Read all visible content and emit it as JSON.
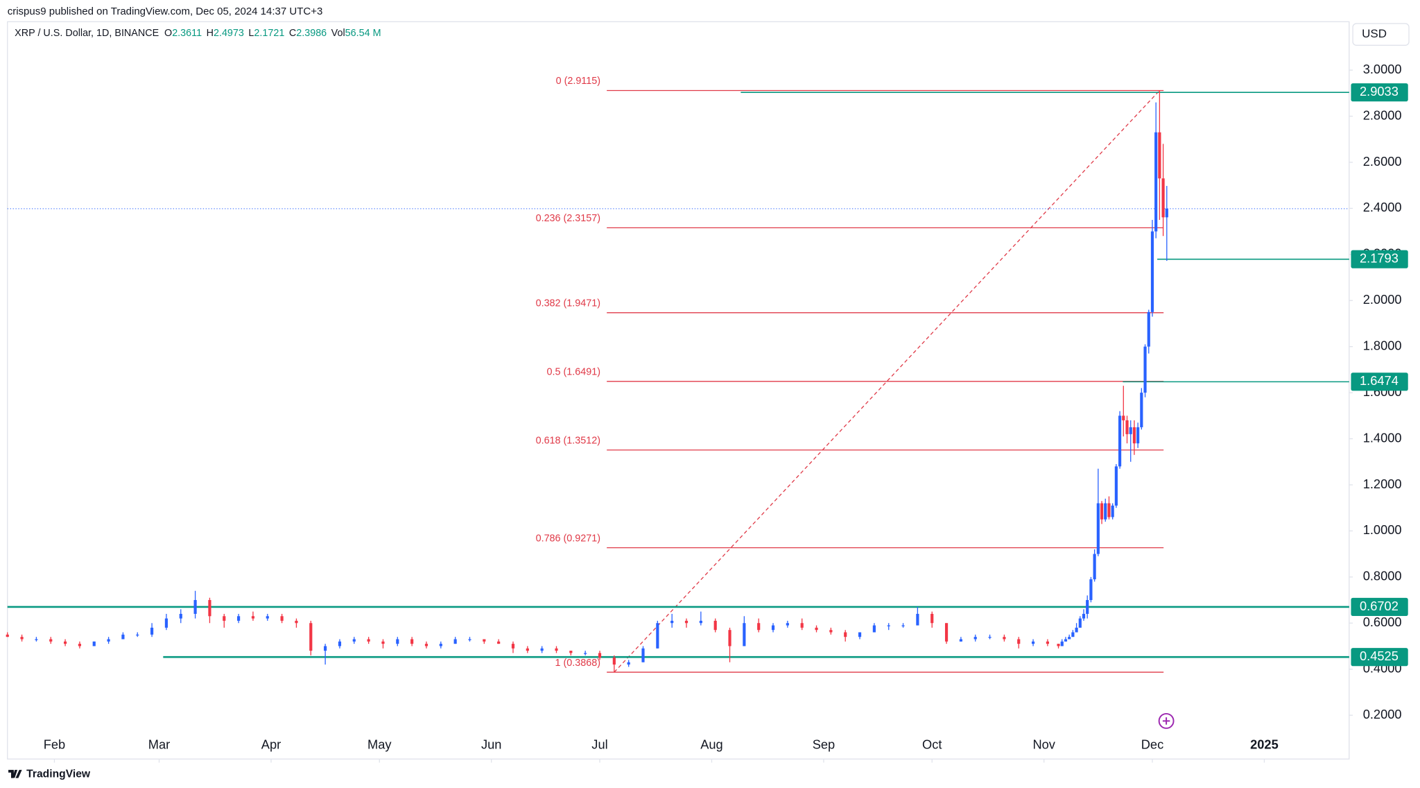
{
  "attribution": "crispus9 published on TradingView.com, Dec 05, 2024 14:37 UTC+3",
  "logo": "TradingView",
  "chart_data": {
    "type": "candlestick",
    "title": "XRP / U.S. Dollar, 1D, BINANCE",
    "legend_values": [
      {
        "label": "O",
        "value": 2.3611
      },
      {
        "label": "H",
        "value": 2.4973
      },
      {
        "label": "L",
        "value": 2.1721
      },
      {
        "label": "C",
        "value": 2.3986
      },
      {
        "label": "Vol",
        "value": "56.54 M"
      }
    ],
    "currency": "USD",
    "up_color": "#2962ff",
    "down_color": "#f23645",
    "x": [
      "2024-01-19",
      "2024-01-23",
      "2024-01-27",
      "2024-01-31",
      "2024-02-04",
      "2024-02-08",
      "2024-02-12",
      "2024-02-16",
      "2024-02-20",
      "2024-02-24",
      "2024-02-28",
      "2024-03-03",
      "2024-03-07",
      "2024-03-11",
      "2024-03-15",
      "2024-03-19",
      "2024-03-23",
      "2024-03-27",
      "2024-03-31",
      "2024-04-04",
      "2024-04-08",
      "2024-04-12",
      "2024-04-16",
      "2024-04-20",
      "2024-04-24",
      "2024-04-28",
      "2024-05-02",
      "2024-05-06",
      "2024-05-10",
      "2024-05-14",
      "2024-05-18",
      "2024-05-22",
      "2024-05-26",
      "2024-05-30",
      "2024-06-03",
      "2024-06-07",
      "2024-06-11",
      "2024-06-15",
      "2024-06-19",
      "2024-06-23",
      "2024-06-27",
      "2024-07-01",
      "2024-07-05",
      "2024-07-09",
      "2024-07-13",
      "2024-07-17",
      "2024-07-21",
      "2024-07-25",
      "2024-07-29",
      "2024-08-02",
      "2024-08-06",
      "2024-08-10",
      "2024-08-14",
      "2024-08-18",
      "2024-08-22",
      "2024-08-26",
      "2024-08-30",
      "2024-09-03",
      "2024-09-07",
      "2024-09-11",
      "2024-09-15",
      "2024-09-19",
      "2024-09-23",
      "2024-09-27",
      "2024-10-01",
      "2024-10-05",
      "2024-10-09",
      "2024-10-13",
      "2024-10-17",
      "2024-10-21",
      "2024-10-25",
      "2024-10-29",
      "2024-11-02",
      "2024-11-05",
      "2024-11-06",
      "2024-11-07",
      "2024-11-08",
      "2024-11-09",
      "2024-11-10",
      "2024-11-11",
      "2024-11-12",
      "2024-11-13",
      "2024-11-14",
      "2024-11-15",
      "2024-11-16",
      "2024-11-17",
      "2024-11-18",
      "2024-11-19",
      "2024-11-20",
      "2024-11-21",
      "2024-11-22",
      "2024-11-23",
      "2024-11-24",
      "2024-11-25",
      "2024-11-26",
      "2024-11-27",
      "2024-11-28",
      "2024-11-29",
      "2024-11-30",
      "2024-12-01",
      "2024-12-02",
      "2024-12-03",
      "2024-12-04",
      "2024-12-05"
    ],
    "open": [
      0.55,
      0.54,
      0.53,
      0.53,
      0.52,
      0.51,
      0.5,
      0.52,
      0.53,
      0.55,
      0.55,
      0.58,
      0.62,
      0.64,
      0.7,
      0.63,
      0.61,
      0.63,
      0.62,
      0.63,
      0.61,
      0.6,
      0.48,
      0.5,
      0.52,
      0.53,
      0.52,
      0.51,
      0.53,
      0.51,
      0.5,
      0.51,
      0.53,
      0.53,
      0.52,
      0.51,
      0.49,
      0.48,
      0.49,
      0.48,
      0.47,
      0.47,
      0.45,
      0.42,
      0.43,
      0.49,
      0.6,
      0.61,
      0.6,
      0.61,
      0.57,
      0.5,
      0.6,
      0.57,
      0.59,
      0.6,
      0.58,
      0.57,
      0.56,
      0.54,
      0.56,
      0.59,
      0.59,
      0.59,
      0.64,
      0.6,
      0.52,
      0.53,
      0.54,
      0.54,
      0.53,
      0.51,
      0.52,
      0.51,
      0.5,
      0.52,
      0.53,
      0.54,
      0.56,
      0.58,
      0.62,
      0.64,
      0.7,
      0.79,
      0.9,
      1.12,
      1.05,
      1.12,
      1.06,
      1.11,
      1.28,
      1.5,
      1.48,
      1.42,
      1.45,
      1.38,
      1.45,
      1.6,
      1.8,
      1.95,
      2.3,
      2.73,
      2.53,
      2.3611
    ],
    "high": [
      0.56,
      0.55,
      0.54,
      0.54,
      0.53,
      0.52,
      0.52,
      0.54,
      0.56,
      0.56,
      0.6,
      0.64,
      0.66,
      0.74,
      0.71,
      0.64,
      0.64,
      0.65,
      0.64,
      0.64,
      0.62,
      0.61,
      0.51,
      0.53,
      0.54,
      0.54,
      0.53,
      0.54,
      0.54,
      0.52,
      0.52,
      0.54,
      0.54,
      0.53,
      0.53,
      0.52,
      0.5,
      0.5,
      0.5,
      0.48,
      0.48,
      0.48,
      0.46,
      0.44,
      0.5,
      0.61,
      0.64,
      0.62,
      0.65,
      0.62,
      0.58,
      0.63,
      0.62,
      0.6,
      0.61,
      0.62,
      0.59,
      0.58,
      0.57,
      0.56,
      0.6,
      0.6,
      0.6,
      0.67,
      0.65,
      0.6,
      0.54,
      0.55,
      0.55,
      0.55,
      0.54,
      0.53,
      0.53,
      0.51,
      0.53,
      0.54,
      0.55,
      0.57,
      0.6,
      0.63,
      0.66,
      0.72,
      0.8,
      0.92,
      1.27,
      1.13,
      1.14,
      1.15,
      1.12,
      1.29,
      1.52,
      1.63,
      1.5,
      1.48,
      1.48,
      1.47,
      1.62,
      1.81,
      1.96,
      2.35,
      2.86,
      2.9115,
      2.68,
      2.4973
    ],
    "low": [
      0.54,
      0.52,
      0.52,
      0.51,
      0.5,
      0.49,
      0.5,
      0.51,
      0.53,
      0.54,
      0.54,
      0.57,
      0.6,
      0.62,
      0.6,
      0.58,
      0.6,
      0.61,
      0.61,
      0.6,
      0.58,
      0.46,
      0.42,
      0.49,
      0.51,
      0.51,
      0.49,
      0.5,
      0.5,
      0.49,
      0.49,
      0.51,
      0.52,
      0.51,
      0.51,
      0.47,
      0.47,
      0.47,
      0.47,
      0.46,
      0.46,
      0.44,
      0.3868,
      0.41,
      0.43,
      0.49,
      0.58,
      0.58,
      0.59,
      0.56,
      0.43,
      0.5,
      0.56,
      0.56,
      0.58,
      0.57,
      0.56,
      0.55,
      0.52,
      0.53,
      0.56,
      0.57,
      0.58,
      0.59,
      0.58,
      0.51,
      0.52,
      0.52,
      0.53,
      0.52,
      0.49,
      0.5,
      0.5,
      0.49,
      0.5,
      0.52,
      0.53,
      0.54,
      0.56,
      0.58,
      0.61,
      0.62,
      0.69,
      0.78,
      0.89,
      1.03,
      1.04,
      1.05,
      1.05,
      1.1,
      1.27,
      1.41,
      1.38,
      1.3,
      1.33,
      1.36,
      1.44,
      1.58,
      1.77,
      1.93,
      2.27,
      2.35,
      2.28,
      2.1721
    ],
    "close": [
      0.54,
      0.53,
      0.53,
      0.52,
      0.51,
      0.5,
      0.52,
      0.53,
      0.55,
      0.55,
      0.58,
      0.62,
      0.64,
      0.7,
      0.63,
      0.61,
      0.63,
      0.62,
      0.63,
      0.61,
      0.6,
      0.48,
      0.5,
      0.52,
      0.53,
      0.52,
      0.51,
      0.53,
      0.51,
      0.5,
      0.51,
      0.53,
      0.53,
      0.52,
      0.51,
      0.49,
      0.48,
      0.49,
      0.48,
      0.47,
      0.47,
      0.45,
      0.42,
      0.43,
      0.49,
      0.6,
      0.61,
      0.6,
      0.61,
      0.57,
      0.5,
      0.6,
      0.57,
      0.59,
      0.6,
      0.58,
      0.57,
      0.56,
      0.54,
      0.56,
      0.59,
      0.59,
      0.59,
      0.64,
      0.6,
      0.52,
      0.53,
      0.54,
      0.54,
      0.53,
      0.51,
      0.52,
      0.51,
      0.5,
      0.52,
      0.53,
      0.54,
      0.56,
      0.58,
      0.62,
      0.64,
      0.7,
      0.79,
      0.9,
      1.12,
      1.05,
      1.12,
      1.06,
      1.11,
      1.28,
      1.5,
      1.48,
      1.42,
      1.45,
      1.38,
      1.45,
      1.6,
      1.8,
      1.95,
      2.3,
      2.73,
      2.53,
      2.3611,
      2.3986
    ],
    "xlim": [
      "2024-01-19",
      "2025-01-24"
    ],
    "xticks": [
      {
        "value": "2024-02-01",
        "label": "Feb"
      },
      {
        "value": "2024-03-01",
        "label": "Mar"
      },
      {
        "value": "2024-04-01",
        "label": "Apr"
      },
      {
        "value": "2024-05-01",
        "label": "May"
      },
      {
        "value": "2024-06-01",
        "label": "Jun"
      },
      {
        "value": "2024-07-01",
        "label": "Jul"
      },
      {
        "value": "2024-08-01",
        "label": "Aug"
      },
      {
        "value": "2024-09-01",
        "label": "Sep"
      },
      {
        "value": "2024-10-01",
        "label": "Oct"
      },
      {
        "value": "2024-11-01",
        "label": "Nov"
      },
      {
        "value": "2024-12-01",
        "label": "Dec"
      },
      {
        "value": "2025-01-01",
        "label": "2025"
      }
    ],
    "ylim": [
      0.01,
      3.21
    ],
    "yticks": [
      {
        "value": 0.2,
        "label": "0.2000"
      },
      {
        "value": 0.4,
        "label": "0.4000"
      },
      {
        "value": 0.6,
        "label": "0.6000"
      },
      {
        "value": 0.8,
        "label": "0.8000"
      },
      {
        "value": 1.0,
        "label": "1.0000"
      },
      {
        "value": 1.2,
        "label": "1.2000"
      },
      {
        "value": 1.4,
        "label": "1.4000"
      },
      {
        "value": 1.6,
        "label": "1.6000"
      },
      {
        "value": 1.8,
        "label": "1.8000"
      },
      {
        "value": 2.0,
        "label": "2.0000"
      },
      {
        "value": 2.2,
        "label": "2.2000"
      },
      {
        "value": 2.4,
        "label": "2.4000"
      },
      {
        "value": 2.6,
        "label": "2.6000"
      },
      {
        "value": 2.8,
        "label": "2.8000"
      },
      {
        "value": 3.0,
        "label": "3.0000"
      }
    ],
    "fib_color": "#e03a48",
    "fib_levels": [
      {
        "value": 2.9115,
        "label": "0 (2.9115)"
      },
      {
        "value": 2.3157,
        "label": "0.236 (2.3157)"
      },
      {
        "value": 1.9471,
        "label": "0.382 (1.9471)"
      },
      {
        "value": 1.6491,
        "label": "0.5 (1.6491)"
      },
      {
        "value": 1.3512,
        "label": "0.618 (1.3512)"
      },
      {
        "value": 0.9271,
        "label": "0.786 (0.9271)"
      },
      {
        "value": 0.3868,
        "label": "1 (0.3868)"
      }
    ],
    "level_color": "#089981",
    "price_lines": [
      2.9033,
      2.1793,
      1.6474,
      0.6702,
      0.4525
    ]
  }
}
